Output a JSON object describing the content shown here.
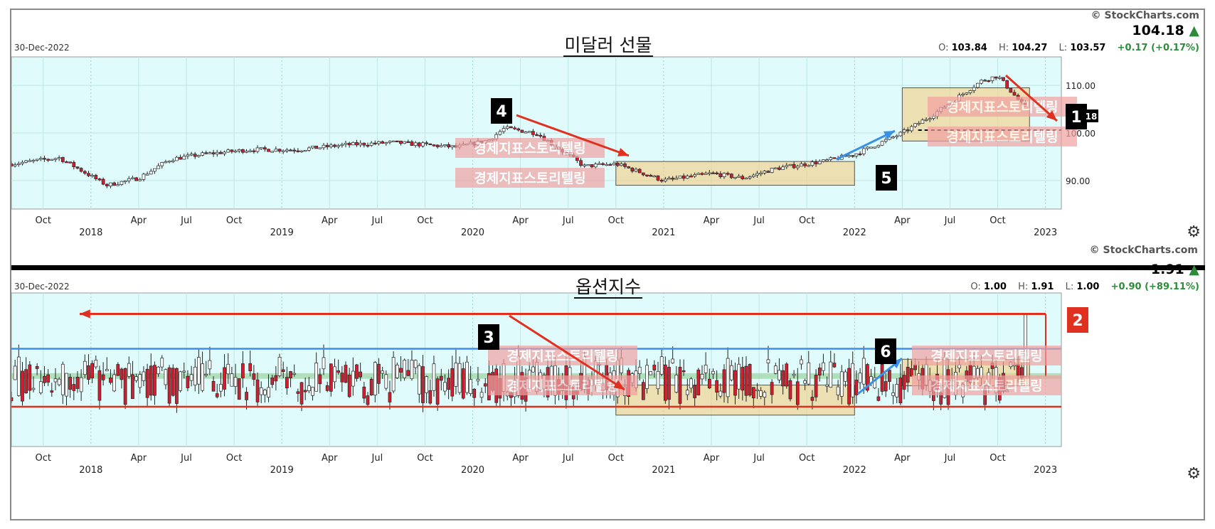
{
  "credit": "© StockCharts.com",
  "settings_icon": "gear-icon",
  "colors": {
    "bg": "#e0fbfb",
    "up": "#ffffff",
    "down": "#d11f2f",
    "box": "#f2d08a",
    "watermark": "#f2a0a0",
    "red_line": "#e03020",
    "blue_line": "#3a90e8"
  },
  "watermark_text": "경제지표스토리텔링",
  "top": {
    "title": "미달러 선물",
    "date": "30-Dec-2022",
    "last": "104.18",
    "o_label": "O:",
    "o": "103.84",
    "h_label": "H:",
    "h": "104.27",
    "l_label": "L:",
    "l": "103.57",
    "change": "+0.17 (+0.17%)",
    "price_tag": "18"
  },
  "bottom": {
    "title": "옵션지수",
    "date": "30-Dec-2022",
    "last": "1.91",
    "o_label": "O:",
    "o": "1.00",
    "h_label": "H:",
    "h": "1.91",
    "l_label": "L:",
    "l": "1.00",
    "change": "+0.90 (+89.11%)"
  },
  "annotations": {
    "n1": "1",
    "n2": "2",
    "n3": "3",
    "n4": "4",
    "n5": "5",
    "n6": "6"
  },
  "chart_data": [
    {
      "type": "candlestick",
      "title": "미달러 선물",
      "ylim": [
        84,
        116
      ],
      "yticks": [
        90,
        100,
        110
      ],
      "ytick_labels": [
        "90.00",
        "100.00",
        "110.00"
      ],
      "month_labels": [
        "Oct",
        "Apr",
        "Jul",
        "Oct",
        "Apr",
        "Jul",
        "Oct",
        "Apr",
        "Jul",
        "Oct",
        "Apr",
        "Jul",
        "Oct",
        "Apr",
        "Jul",
        "Oct"
      ],
      "month_dates": [
        "2017-10",
        "2018-04",
        "2018-07",
        "2018-10",
        "2019-04",
        "2019-07",
        "2019-10",
        "2020-04",
        "2020-07",
        "2020-10",
        "2021-04",
        "2021-07",
        "2021-10",
        "2022-04",
        "2022-07",
        "2022-10"
      ],
      "year_labels": [
        "2018",
        "2019",
        "2020",
        "2021",
        "2022",
        "2023"
      ],
      "x_range": [
        "2017-08",
        "2023-02"
      ],
      "path_dates": [
        "2017-08",
        "2017-11",
        "2018-02",
        "2018-04",
        "2018-06",
        "2018-08",
        "2018-11",
        "2019-02",
        "2019-05",
        "2019-08",
        "2019-10",
        "2019-12",
        "2020-02",
        "2020-03",
        "2020-05",
        "2020-08",
        "2020-10",
        "2021-01",
        "2021-04",
        "2021-06",
        "2021-08",
        "2021-11",
        "2022-01",
        "2022-04",
        "2022-06",
        "2022-09",
        "2022-10",
        "2022-12"
      ],
      "path_values": [
        93.5,
        94.8,
        89,
        90.5,
        94.5,
        95.5,
        96.5,
        96.5,
        97.5,
        98,
        97.5,
        97,
        98.5,
        101,
        100,
        93,
        93.5,
        90,
        91.5,
        90.5,
        92.5,
        94,
        95.5,
        100,
        104,
        111,
        112,
        104.2
      ],
      "horizontal_dashed": 100.6,
      "boxes": [
        {
          "x0": "2020-10",
          "x1": "2022-01",
          "y0": 89,
          "y1": 94
        },
        {
          "x0": "2022-04",
          "x1": "2022-12",
          "y0": 98.3,
          "y1": 109.5
        }
      ]
    },
    {
      "type": "candlestick",
      "title": "옵션지수",
      "ylim": [
        0,
        2.2
      ],
      "month_labels": [
        "Oct",
        "Apr",
        "Jul",
        "Oct",
        "Apr",
        "Jul",
        "Oct",
        "Apr",
        "Jul",
        "Oct",
        "Apr",
        "Jul",
        "Oct",
        "Apr",
        "Jul",
        "Oct"
      ],
      "month_dates": [
        "2017-10",
        "2018-04",
        "2018-07",
        "2018-10",
        "2019-04",
        "2019-07",
        "2019-10",
        "2020-04",
        "2020-07",
        "2020-10",
        "2021-04",
        "2021-07",
        "2021-10",
        "2022-04",
        "2022-07",
        "2022-10"
      ],
      "year_labels": [
        "2018",
        "2019",
        "2020",
        "2021",
        "2022",
        "2023"
      ],
      "x_range": [
        "2017-08",
        "2023-02"
      ],
      "red_level": 0.57,
      "blue_level": 1.4,
      "green_band": [
        0.97,
        1.05
      ],
      "top_level": 1.9,
      "boxes": [
        {
          "x0": "2020-10",
          "x1": "2022-01",
          "y0": 0.45,
          "y1": 0.88
        },
        {
          "x0": "2022-04",
          "x1": "2022-12",
          "y0": 0.87,
          "y1": 1.25
        }
      ],
      "final_high": 1.91,
      "final_open": 1.0
    }
  ]
}
